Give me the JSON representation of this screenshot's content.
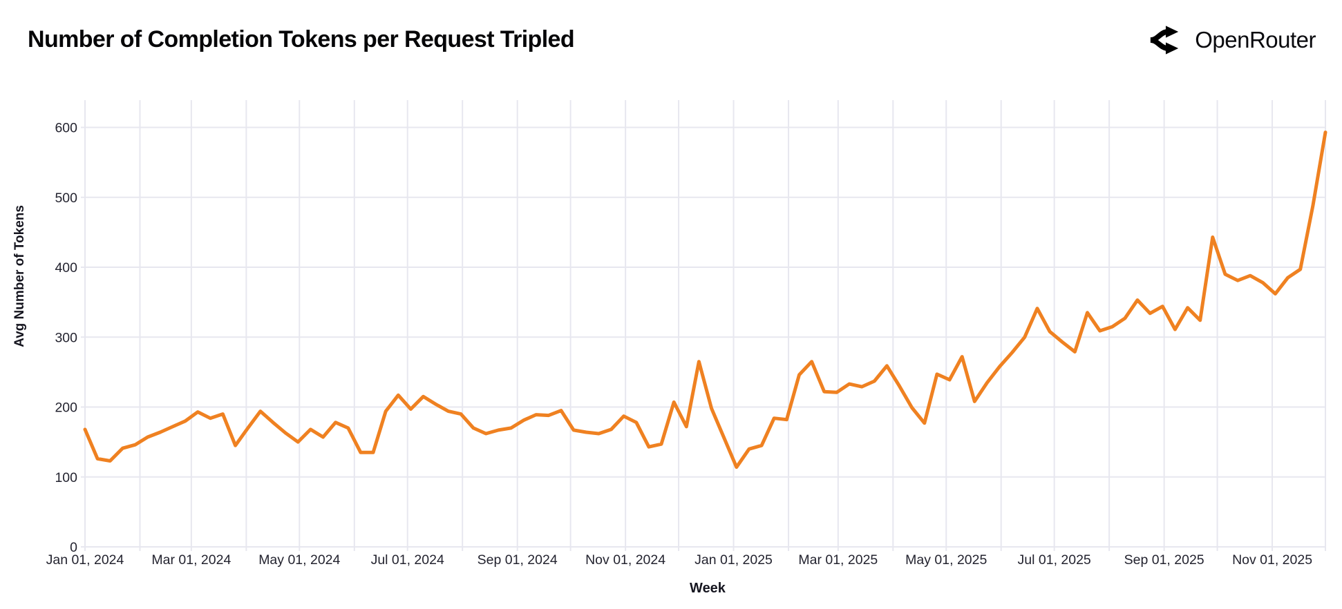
{
  "header": {
    "title": "Number of Completion Tokens per Request Tripled",
    "brand_name": "OpenRouter"
  },
  "colors": {
    "line": "#ef8121",
    "grid": "#e7e7ef",
    "tick_text": "#23232f",
    "axis_title_text": "#15151f"
  },
  "chart_data": {
    "type": "line",
    "title": "Number of Completion Tokens per Request Tripled",
    "xlabel": "Week",
    "ylabel": "Avg Number of Tokens",
    "legend_position": "none",
    "grid": true,
    "ylim": [
      0,
      600
    ],
    "y_tick_labels": [
      "0",
      "100",
      "200",
      "300",
      "400",
      "500",
      "600"
    ],
    "y_tick_values": [
      0,
      100,
      200,
      300,
      400,
      500,
      600
    ],
    "x_tick_labels": [
      "Jan 01, 2024",
      "Mar 01, 2024",
      "May 01, 2024",
      "Jul 01, 2024",
      "Sep 01, 2024",
      "Nov 01, 2024",
      "Jan 01, 2025",
      "Mar 01, 2025",
      "May 01, 2025",
      "Jul 01, 2025",
      "Sep 01, 2025",
      "Nov 01, 2025"
    ],
    "x_frequency": "weekly",
    "x_start_label": "Jan 01, 2024",
    "series": [
      {
        "name": "Avg Number of Tokens",
        "values": [
          168,
          126,
          123,
          141,
          146,
          157,
          164,
          172,
          180,
          193,
          184,
          190,
          145,
          170,
          194,
          178,
          163,
          150,
          168,
          157,
          178,
          170,
          135,
          135,
          194,
          217,
          197,
          215,
          204,
          194,
          190,
          170,
          162,
          167,
          170,
          181,
          189,
          188,
          195,
          167,
          164,
          162,
          168,
          187,
          178,
          143,
          147,
          207,
          172,
          265,
          198,
          156,
          114,
          140,
          145,
          184,
          182,
          246,
          265,
          222,
          221,
          233,
          229,
          237,
          259,
          230,
          199,
          177,
          247,
          239,
          272,
          208,
          235,
          258,
          278,
          300,
          341,
          308,
          293,
          279,
          335,
          309,
          315,
          327,
          353,
          334,
          344,
          311,
          342,
          324,
          443,
          390,
          381,
          388,
          378,
          362,
          385,
          397,
          488,
          593
        ]
      }
    ]
  }
}
